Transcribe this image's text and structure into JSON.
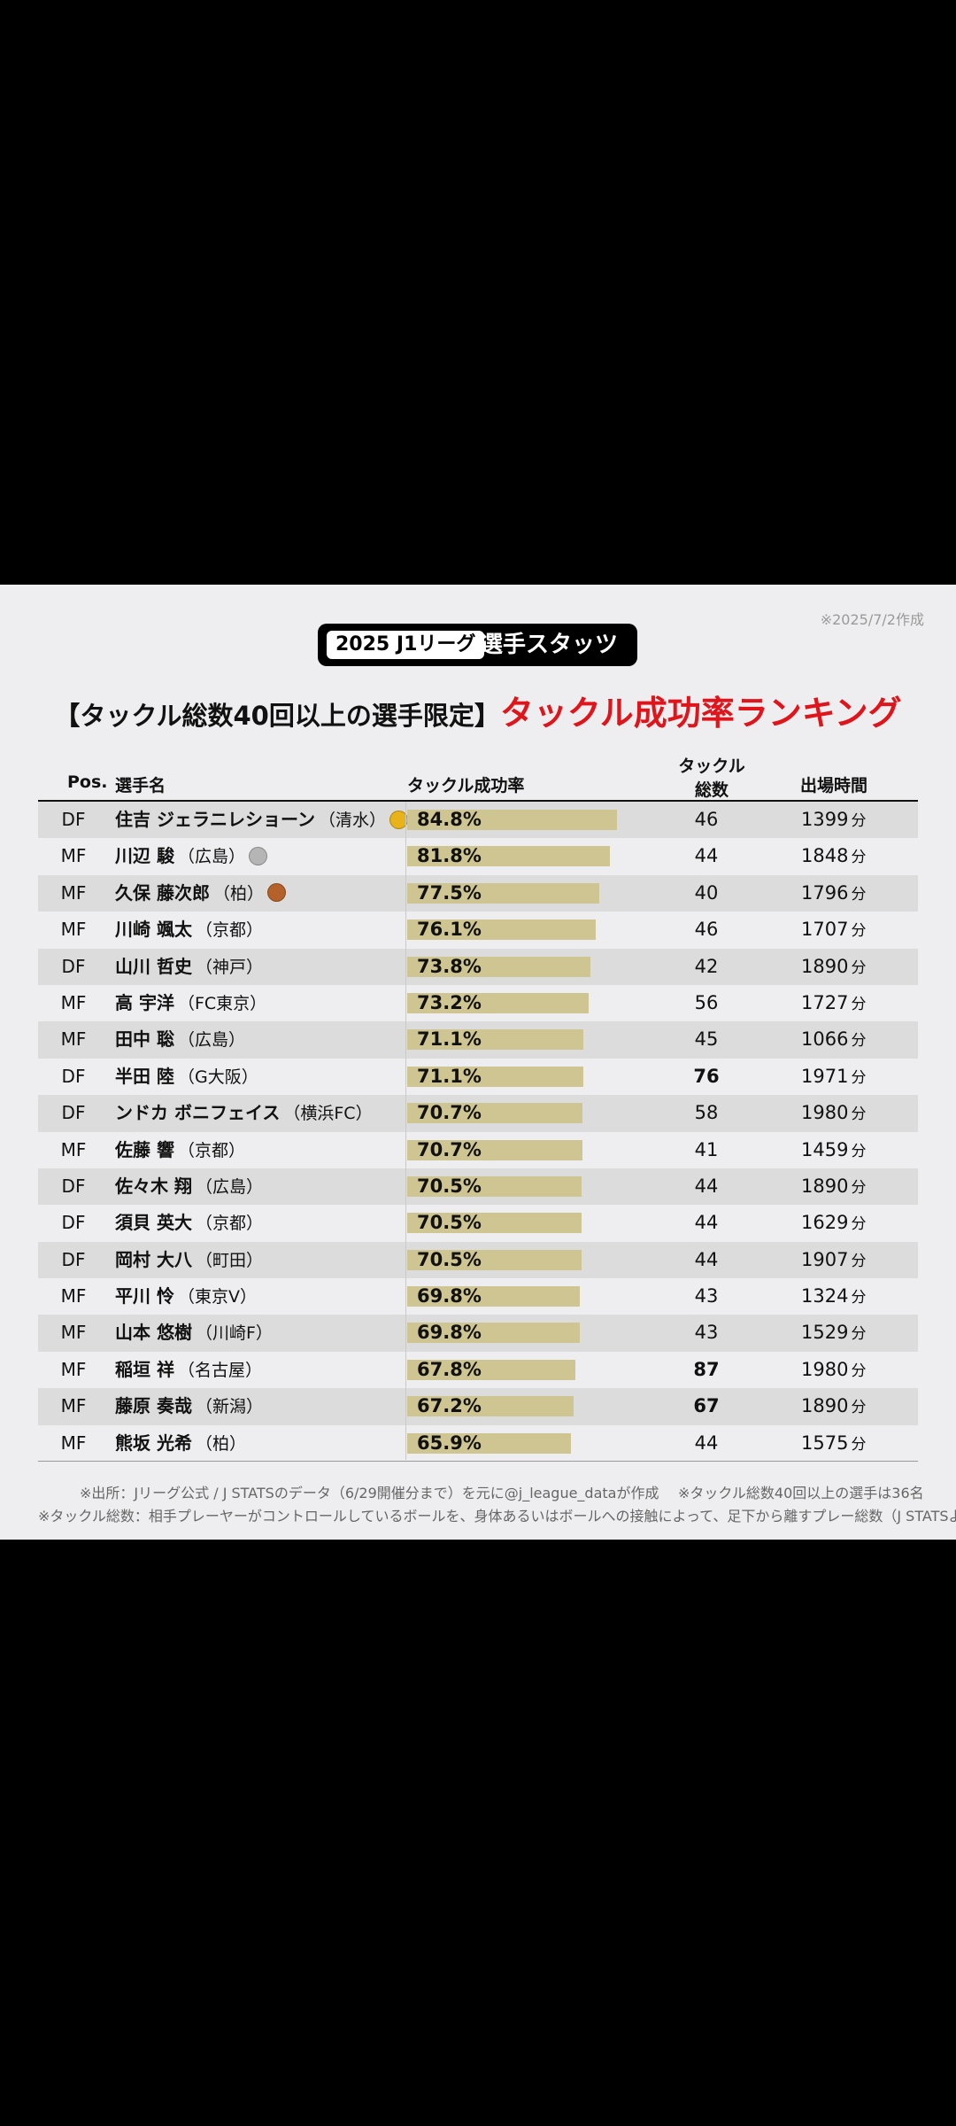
{
  "header": {
    "created": "※2025/7/2作成",
    "badge_league": "2025 J1リーグ",
    "badge_label": "選手スタッツ",
    "subtitle_condition": "【タックル総数40回以上の選手限定】",
    "title": "タックル成功率ランキング"
  },
  "columns": {
    "pos": "Pos.",
    "name": "選手名",
    "rate": "タックル成功率",
    "total_line1": "タックル",
    "total_line2": "総数",
    "minutes": "出場時間"
  },
  "unit_minutes": "分",
  "colors": {
    "bar": "#cfc592",
    "accent_red": "#e0141b",
    "row_alt": "#dcdcdc",
    "gold": "#e8b21a",
    "silver": "#b5b5b5",
    "bronze": "#b4612a"
  },
  "rows": [
    {
      "pos": "DF",
      "name": "住吉 ジェラニレショーン",
      "team": "（清水）",
      "medal": "gold-medal-icon",
      "rate": "84.8%",
      "rate_value": 84.8,
      "tackles": "46",
      "highlight": false,
      "minutes": "1399"
    },
    {
      "pos": "MF",
      "name": "川辺 駿",
      "team": "（広島）",
      "medal": "silver-medal-icon",
      "rate": "81.8%",
      "rate_value": 81.8,
      "tackles": "44",
      "highlight": false,
      "minutes": "1848"
    },
    {
      "pos": "MF",
      "name": "久保 藤次郎",
      "team": "（柏）",
      "medal": "bronze-medal-icon",
      "rate": "77.5%",
      "rate_value": 77.5,
      "tackles": "40",
      "highlight": false,
      "minutes": "1796"
    },
    {
      "pos": "MF",
      "name": "川崎 颯太",
      "team": "（京都）",
      "medal": "",
      "rate": "76.1%",
      "rate_value": 76.1,
      "tackles": "46",
      "highlight": false,
      "minutes": "1707"
    },
    {
      "pos": "DF",
      "name": "山川 哲史",
      "team": "（神戸）",
      "medal": "",
      "rate": "73.8%",
      "rate_value": 73.8,
      "tackles": "42",
      "highlight": false,
      "minutes": "1890"
    },
    {
      "pos": "MF",
      "name": "高 宇洋",
      "team": "（FC東京）",
      "medal": "",
      "rate": "73.2%",
      "rate_value": 73.2,
      "tackles": "56",
      "highlight": false,
      "minutes": "1727"
    },
    {
      "pos": "MF",
      "name": "田中 聡",
      "team": "（広島）",
      "medal": "",
      "rate": "71.1%",
      "rate_value": 71.1,
      "tackles": "45",
      "highlight": false,
      "minutes": "1066"
    },
    {
      "pos": "DF",
      "name": "半田 陸",
      "team": "（G大阪）",
      "medal": "",
      "rate": "71.1%",
      "rate_value": 71.1,
      "tackles": "76",
      "highlight": true,
      "minutes": "1971"
    },
    {
      "pos": "DF",
      "name": "ンドカ ボニフェイス",
      "team": "（横浜FC）",
      "medal": "",
      "rate": "70.7%",
      "rate_value": 70.7,
      "tackles": "58",
      "highlight": false,
      "minutes": "1980"
    },
    {
      "pos": "MF",
      "name": "佐藤 響",
      "team": "（京都）",
      "medal": "",
      "rate": "70.7%",
      "rate_value": 70.7,
      "tackles": "41",
      "highlight": false,
      "minutes": "1459"
    },
    {
      "pos": "DF",
      "name": "佐々木 翔",
      "team": "（広島）",
      "medal": "",
      "rate": "70.5%",
      "rate_value": 70.5,
      "tackles": "44",
      "highlight": false,
      "minutes": "1890"
    },
    {
      "pos": "DF",
      "name": "須貝 英大",
      "team": "（京都）",
      "medal": "",
      "rate": "70.5%",
      "rate_value": 70.5,
      "tackles": "44",
      "highlight": false,
      "minutes": "1629"
    },
    {
      "pos": "DF",
      "name": "岡村 大八",
      "team": "（町田）",
      "medal": "",
      "rate": "70.5%",
      "rate_value": 70.5,
      "tackles": "44",
      "highlight": false,
      "minutes": "1907"
    },
    {
      "pos": "MF",
      "name": "平川 怜",
      "team": "（東京V）",
      "medal": "",
      "rate": "69.8%",
      "rate_value": 69.8,
      "tackles": "43",
      "highlight": false,
      "minutes": "1324"
    },
    {
      "pos": "MF",
      "name": "山本 悠樹",
      "team": "（川崎F）",
      "medal": "",
      "rate": "69.8%",
      "rate_value": 69.8,
      "tackles": "43",
      "highlight": false,
      "minutes": "1529"
    },
    {
      "pos": "MF",
      "name": "稲垣 祥",
      "team": "（名古屋）",
      "medal": "",
      "rate": "67.8%",
      "rate_value": 67.8,
      "tackles": "87",
      "highlight": true,
      "minutes": "1980"
    },
    {
      "pos": "MF",
      "name": "藤原 奏哉",
      "team": "（新潟）",
      "medal": "",
      "rate": "67.2%",
      "rate_value": 67.2,
      "tackles": "67",
      "highlight": true,
      "minutes": "1890"
    },
    {
      "pos": "MF",
      "name": "熊坂 光希",
      "team": "（柏）",
      "medal": "",
      "rate": "65.9%",
      "rate_value": 65.9,
      "tackles": "44",
      "highlight": false,
      "minutes": "1575"
    }
  ],
  "footer": {
    "source": "※出所：Jリーグ公式 / J STATSのデータ（6/29開催分まで）を元に@j_league_dataが作成",
    "count_note": "※タックル総数40回以上の選手は36名",
    "definition": "※タックル総数：相手プレーヤーがコントロールしているボールを、身体あるいはボールへの接触によって、足下から離すプレー総数（J STATSより）"
  }
}
